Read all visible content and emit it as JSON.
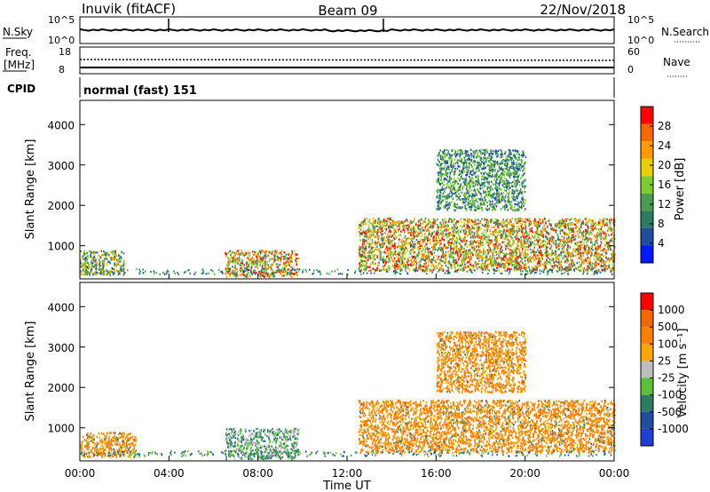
{
  "header": {
    "station": "Inuvik (fitACF)",
    "beam": "Beam 09",
    "date": "22/Nov/2018"
  },
  "nsky_panel": {
    "left_label": "N.Sky",
    "right_label": "N.Search",
    "left_ticks": [
      "10^5",
      "10^0"
    ],
    "right_ticks": [
      "10^5",
      "10^0"
    ]
  },
  "freq_panel": {
    "left_label_1": "Freq.",
    "left_label_2": "[MHz]",
    "right_label": "Nave",
    "left_ticks": [
      "18",
      "8"
    ],
    "right_ticks": [
      "60",
      "0"
    ]
  },
  "cpid_panel": {
    "label": "CPID",
    "mode": "normal (fast) 151"
  },
  "colors": {
    "power_scale": [
      "#0018ff",
      "#1f4e9c",
      "#2f7a63",
      "#4a9a52",
      "#7ccc2a",
      "#e8d000",
      "#ff9a00",
      "#f06a00",
      "#ff0000"
    ],
    "velocity_scale": [
      "#1f3fcc",
      "#1f4e9c",
      "#2f7a63",
      "#5cbf3a",
      "#bdbdbd",
      "#ffa600",
      "#ff8000",
      "#f06a00",
      "#ff0000"
    ]
  },
  "chart_data": [
    {
      "type": "heatmap",
      "name": "Power",
      "xlabel": "",
      "ylabel": "Slant Range [km]",
      "xlim": [
        "00:00",
        "24:00"
      ],
      "ylim": [
        180,
        4600
      ],
      "y_ticks": [
        "1000",
        "2000",
        "3000",
        "4000"
      ],
      "colorbar_label": "Power [dB]",
      "colorbar_ticks": [
        "4",
        "8",
        "12",
        "16",
        "20",
        "24",
        "28"
      ],
      "regions": [
        {
          "t0": 0.0,
          "t1": 2.0,
          "r0": 300,
          "r1": 900,
          "level": "medium"
        },
        {
          "t0": 6.5,
          "t1": 9.8,
          "r0": 250,
          "r1": 900,
          "level": "high"
        },
        {
          "t0": 12.5,
          "t1": 24.0,
          "r0": 400,
          "r1": 1700,
          "level": "high"
        },
        {
          "t0": 16.0,
          "t1": 20.0,
          "r0": 1900,
          "r1": 3400,
          "level": "low"
        }
      ]
    },
    {
      "type": "heatmap",
      "name": "Velocity",
      "xlabel": "Time UT",
      "ylabel": "Slant Range [km]",
      "xlim": [
        "00:00",
        "24:00"
      ],
      "ylim": [
        180,
        4600
      ],
      "x_ticks": [
        "00:00",
        "04:00",
        "08:00",
        "12:00",
        "16:00",
        "20:00",
        "00:00"
      ],
      "y_ticks": [
        "1000",
        "2000",
        "3000",
        "4000"
      ],
      "colorbar_label": "Velocity [m s⁻¹]",
      "colorbar_ticks": [
        "1000",
        "500",
        "100",
        "25",
        "-25",
        "-100",
        "-500",
        "-1000"
      ],
      "regions": [
        {
          "t0": 0.0,
          "t1": 2.5,
          "r0": 300,
          "r1": 900,
          "level": "orange"
        },
        {
          "t0": 6.5,
          "t1": 9.8,
          "r0": 250,
          "r1": 1000,
          "level": "green-gray"
        },
        {
          "t0": 12.5,
          "t1": 24.0,
          "r0": 400,
          "r1": 1700,
          "level": "orange"
        },
        {
          "t0": 16.0,
          "t1": 20.0,
          "r0": 1900,
          "r1": 3400,
          "level": "orange"
        }
      ]
    }
  ]
}
